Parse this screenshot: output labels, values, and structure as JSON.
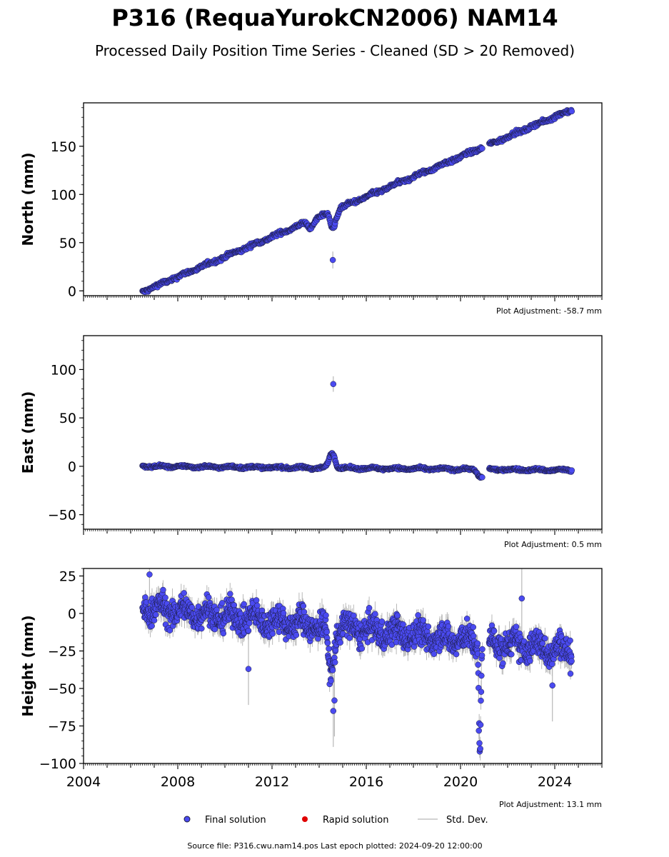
{
  "title": "P316 (RequaYurokCN2006) NAM14",
  "subtitle": "Processed Daily Position Time Series - Cleaned (SD > 20 Removed)",
  "colors": {
    "final": "#4a4af0",
    "final_edge": "#1a1a3a",
    "rapid": "#e00000",
    "stddev": "#b8b8b8"
  },
  "legend": {
    "final": "Final solution",
    "rapid": "Rapid solution",
    "stddev": "Std. Dev."
  },
  "source_text": "Source file: P316.cwu.nam14.pos  Last epoch plotted: 2024-09-20 12:00:00",
  "chart_data": [
    {
      "type": "scatter",
      "ylabel": "North (mm)",
      "adjustment": "Plot Adjustment: -58.7 mm",
      "xlim": [
        2004.0,
        2026.0
      ],
      "ylim": [
        -5,
        195
      ],
      "yticks": [
        0,
        50,
        100,
        150
      ],
      "x_start": 2006.5,
      "x_end": 2024.72,
      "gap": [
        2020.93,
        2021.2
      ],
      "trend": {
        "start": -1,
        "end": 188
      },
      "noise": 1.4,
      "sd": 2.2,
      "features": [
        {
          "x": 2013.65,
          "y": 66,
          "note": "dip"
        },
        {
          "x": 2014.6,
          "y": 66,
          "note": "dip"
        }
      ],
      "outliers": [
        {
          "x": 2014.58,
          "y": 32
        }
      ]
    },
    {
      "type": "scatter",
      "ylabel": "East (mm)",
      "adjustment": "Plot Adjustment: 0.5 mm",
      "xlim": [
        2004.0,
        2026.0
      ],
      "ylim": [
        -65,
        135
      ],
      "yticks": [
        -50,
        0,
        50,
        100
      ],
      "x_start": 2006.5,
      "x_end": 2024.72,
      "gap": [
        2020.93,
        2021.2
      ],
      "trend": {
        "start": 0,
        "end": -4
      },
      "noise": 0.9,
      "sd": 2.0,
      "features": [
        {
          "x": 2014.55,
          "y": 14,
          "note": "bump"
        },
        {
          "x": 2020.85,
          "y": -11,
          "note": "dip"
        }
      ],
      "outliers": [
        {
          "x": 2014.6,
          "y": 85
        }
      ]
    },
    {
      "type": "scatter",
      "ylabel": "Height (mm)",
      "adjustment": "Plot Adjustment: 13.1 mm",
      "xlim": [
        2004.0,
        2026.0
      ],
      "ylim": [
        -100,
        30
      ],
      "yticks": [
        -100,
        -75,
        -50,
        -25,
        0,
        25
      ],
      "xticks": [
        2004,
        2008,
        2012,
        2016,
        2020,
        2024
      ],
      "x_start": 2006.5,
      "x_end": 2024.72,
      "gap": [
        2020.93,
        2021.2
      ],
      "trend": {
        "start": 4,
        "end": -25
      },
      "noise": 6.5,
      "sd": 6.0,
      "features": [
        {
          "x": 2014.5,
          "y": -40,
          "note": "dip"
        },
        {
          "x": 2020.82,
          "y": -93,
          "note": "deep dip"
        }
      ],
      "outliers": [
        {
          "x": 2006.8,
          "y": 26
        },
        {
          "x": 2011.0,
          "y": -37
        },
        {
          "x": 2014.6,
          "y": -65
        },
        {
          "x": 2014.65,
          "y": -58
        },
        {
          "x": 2022.6,
          "y": 10
        },
        {
          "x": 2023.9,
          "y": -48
        }
      ]
    }
  ]
}
